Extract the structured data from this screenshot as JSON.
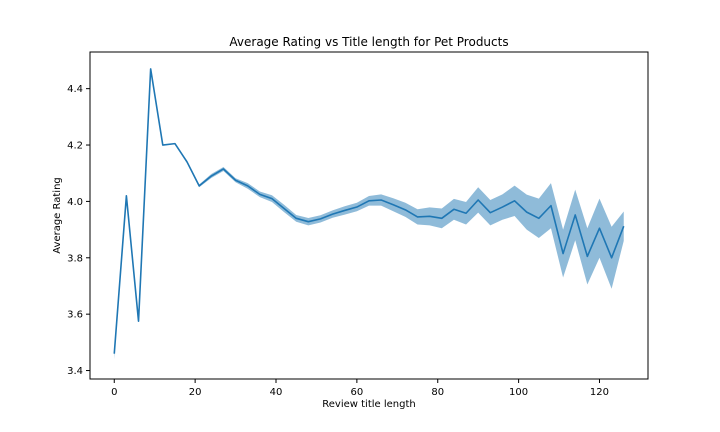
{
  "chart_data": {
    "type": "line",
    "title": "Average Rating vs Title length for Pet Products",
    "xlabel": "Review title length",
    "ylabel": "Average Rating",
    "xlim": [
      -6,
      132
    ],
    "ylim": [
      3.37,
      4.53
    ],
    "xticks": [
      0,
      20,
      40,
      60,
      80,
      100,
      120
    ],
    "yticks": [
      3.4,
      3.6,
      3.8,
      4.0,
      4.2,
      4.4
    ],
    "ytick_labels": [
      "3.4",
      "3.6",
      "3.8",
      "4.0",
      "4.2",
      "4.4"
    ],
    "grid": false,
    "line_color": "#1f77b4",
    "band_color": "#1f77b4",
    "series": [
      {
        "x": [
          0,
          3,
          6,
          9,
          12,
          15,
          18,
          21,
          24,
          27,
          30,
          33,
          36,
          39,
          42,
          45,
          48,
          51,
          54,
          57,
          60,
          63,
          66,
          69,
          72,
          75,
          78,
          81,
          84,
          87,
          90,
          93,
          96,
          99,
          102,
          105,
          108,
          111,
          114,
          117,
          120,
          123,
          126
        ],
        "y": [
          3.46,
          4.02,
          3.575,
          4.47,
          4.2,
          4.205,
          4.14,
          4.055,
          4.09,
          4.115,
          4.075,
          4.055,
          4.025,
          4.01,
          3.975,
          3.94,
          3.928,
          3.938,
          3.955,
          3.968,
          3.98,
          4.002,
          4.005,
          3.988,
          3.97,
          3.945,
          3.947,
          3.94,
          3.972,
          3.958,
          4.005,
          3.96,
          3.98,
          4.002,
          3.962,
          3.94,
          3.985,
          3.815,
          3.952,
          3.805,
          3.905,
          3.8,
          3.912
        ],
        "lower": [
          3.44,
          4.02,
          3.575,
          4.47,
          4.2,
          4.205,
          4.135,
          4.05,
          4.083,
          4.108,
          4.068,
          4.045,
          4.015,
          3.998,
          3.962,
          3.928,
          3.915,
          3.925,
          3.942,
          3.953,
          3.965,
          3.985,
          3.985,
          3.965,
          3.945,
          3.918,
          3.915,
          3.905,
          3.935,
          3.918,
          3.96,
          3.915,
          3.935,
          3.948,
          3.9,
          3.87,
          3.905,
          3.73,
          3.862,
          3.705,
          3.8,
          3.69,
          3.86
        ],
        "upper": [
          3.48,
          4.02,
          3.575,
          4.47,
          4.2,
          4.205,
          4.145,
          4.06,
          4.097,
          4.122,
          4.082,
          4.065,
          4.035,
          4.022,
          3.988,
          3.952,
          3.941,
          3.951,
          3.968,
          3.983,
          3.995,
          4.019,
          4.025,
          4.011,
          3.995,
          3.972,
          3.979,
          3.975,
          4.009,
          3.998,
          4.05,
          4.005,
          4.025,
          4.056,
          4.024,
          4.01,
          4.065,
          3.9,
          4.042,
          3.905,
          4.01,
          3.91,
          3.964
        ]
      }
    ]
  }
}
